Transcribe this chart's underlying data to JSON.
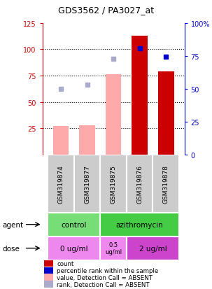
{
  "title": "GDS3562 / PA3027_at",
  "samples": [
    "GSM319874",
    "GSM319877",
    "GSM319875",
    "GSM319876",
    "GSM319878"
  ],
  "bar_values_red": [
    27,
    28,
    76,
    113,
    79
  ],
  "bar_absent_red": [
    true,
    true,
    true,
    false,
    false
  ],
  "rank_values": [
    62,
    66,
    91,
    101,
    93
  ],
  "rank_absent": [
    true,
    true,
    true,
    false,
    false
  ],
  "ylim_left": [
    0,
    125
  ],
  "yticks_left": [
    25,
    50,
    75,
    100,
    125
  ],
  "ytick_labels_left": [
    "25",
    "50",
    "75",
    "100",
    "125"
  ],
  "yticks_right_mapped": [
    0,
    25,
    50,
    75,
    100
  ],
  "ytick_labels_right": [
    "0",
    "25",
    "50",
    "75",
    "100%"
  ],
  "color_red": "#cc0000",
  "color_pink": "#ffaaaa",
  "color_blue": "#0000cc",
  "color_lightblue": "#aaaacc",
  "color_agent_control": "#77dd77",
  "color_agent_azithromycin": "#44cc44",
  "color_dose_light": "#ee88ee",
  "color_dose_dark": "#cc44cc",
  "color_sample_bg": "#cccccc",
  "legend_items": [
    [
      "count",
      "#cc0000"
    ],
    [
      "percentile rank within the sample",
      "#0000cc"
    ],
    [
      "value, Detection Call = ABSENT",
      "#ffaaaa"
    ],
    [
      "rank, Detection Call = ABSENT",
      "#aaaacc"
    ]
  ]
}
